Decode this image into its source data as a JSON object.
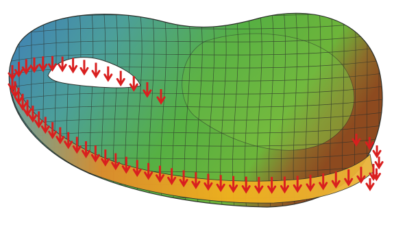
{
  "scene": {
    "subject": "klein-bottle-surface-mesh",
    "colors": {
      "background": "#ffffff",
      "mesh_line": "#2b2f2a",
      "vector": "#d91f1f",
      "gradient_blue": "#3f7fb8",
      "gradient_teal": "#4c9f9a",
      "gradient_green": "#56b043",
      "gradient_lime": "#a6c93a",
      "gradient_orange": "#f29a1e",
      "gradient_brown": "#8d4a1f"
    },
    "icons": [
      "red-arrow-glyph"
    ]
  }
}
